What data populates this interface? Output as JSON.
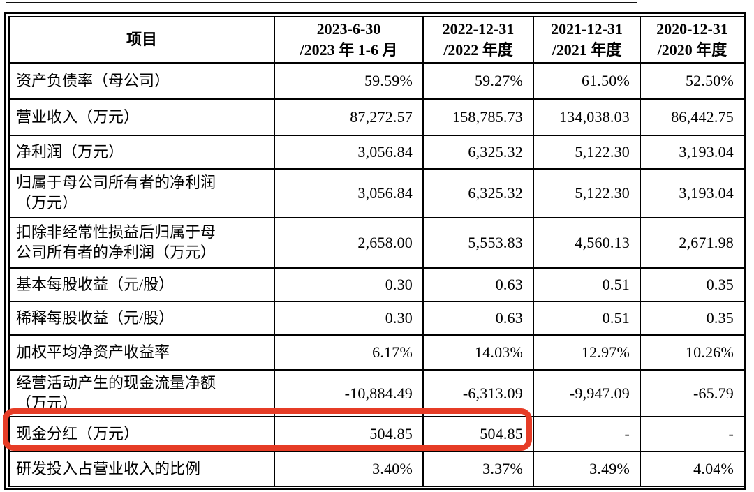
{
  "table": {
    "header": {
      "item_label": "项目",
      "periods": [
        {
          "line1": "2023-6-30",
          "line2": "/2023 年 1-6 月"
        },
        {
          "line1": "2022-12-31",
          "line2": "/2022 年度"
        },
        {
          "line1": "2021-12-31",
          "line2": "/2021 年度"
        },
        {
          "line1": "2020-12-31",
          "line2": "/2020 年度"
        }
      ]
    },
    "rows": [
      {
        "label": "资产负债率（母公司）",
        "values": [
          "59.59%",
          "59.27%",
          "61.50%",
          "52.50%"
        ],
        "highlighted": false
      },
      {
        "label": "营业收入（万元）",
        "values": [
          "87,272.57",
          "158,785.73",
          "134,038.03",
          "86,442.75"
        ],
        "highlighted": false
      },
      {
        "label": "净利润（万元）",
        "values": [
          "3,056.84",
          "6,325.32",
          "5,122.30",
          "3,193.04"
        ],
        "highlighted": false
      },
      {
        "label": "归属于母公司所有者的净利润\n（万元）",
        "values": [
          "3,056.84",
          "6,325.32",
          "5,122.30",
          "3,193.04"
        ],
        "highlighted": false
      },
      {
        "label": "扣除非经常性损益后归属于母\n公司所有者的净利润（万元）",
        "values": [
          "2,658.00",
          "5,553.83",
          "4,560.13",
          "2,671.98"
        ],
        "highlighted": false
      },
      {
        "label": "基本每股收益（元/股）",
        "values": [
          "0.30",
          "0.63",
          "0.51",
          "0.35"
        ],
        "highlighted": false
      },
      {
        "label": "稀释每股收益（元/股）",
        "values": [
          "0.30",
          "0.63",
          "0.51",
          "0.35"
        ],
        "highlighted": false
      },
      {
        "label": "加权平均净资产收益率",
        "values": [
          "6.17%",
          "14.03%",
          "12.97%",
          "10.26%"
        ],
        "highlighted": false
      },
      {
        "label": "经营活动产生的现金流量净额\n（万元）",
        "values": [
          "-10,884.49",
          "-6,313.09",
          "-9,947.09",
          "-65.79"
        ],
        "highlighted": false
      },
      {
        "label": "现金分红（万元）",
        "values": [
          "504.85",
          "504.85",
          "-",
          "-"
        ],
        "highlighted": true
      },
      {
        "label": "研发投入占营业收入的比例",
        "values": [
          "3.40%",
          "3.37%",
          "3.49%",
          "4.04%"
        ],
        "highlighted": false
      }
    ]
  },
  "annotation": {
    "type": "rounded-rectangle",
    "color": "#e63c26",
    "marks_row": "现金分红（万元）",
    "covers_values": [
      "504.85",
      "504.85"
    ]
  },
  "colors": {
    "border": "#000000",
    "text": "#000000",
    "background": "#ffffff"
  }
}
